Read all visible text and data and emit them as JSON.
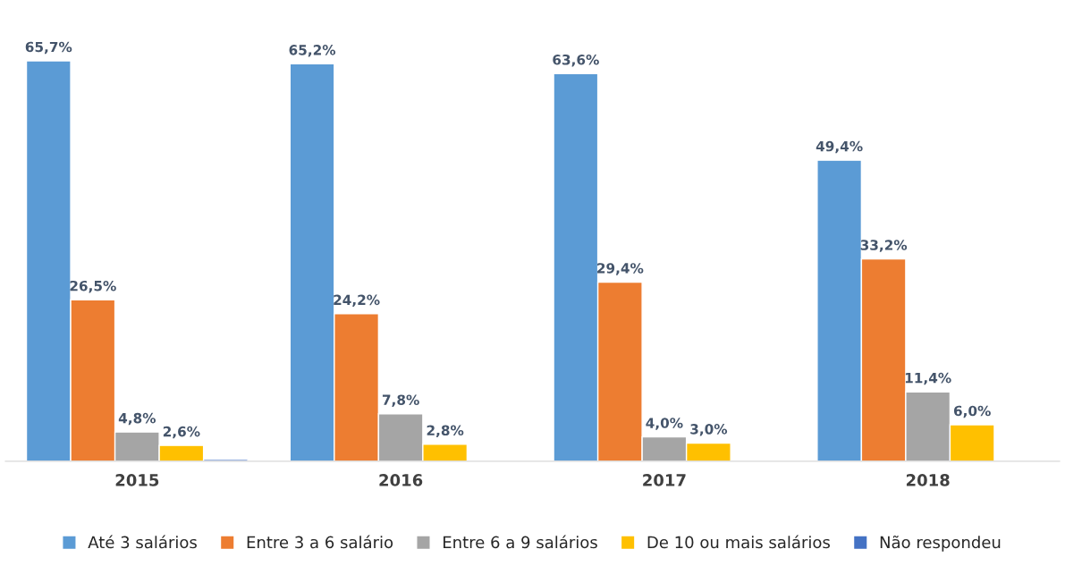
{
  "chart_data": {
    "type": "bar",
    "categories": [
      "2015",
      "2016",
      "2017",
      "2018"
    ],
    "series": [
      {
        "name": "Até 3 salários",
        "color": "#5b9bd5",
        "values": [
          65.7,
          65.2,
          63.6,
          49.4
        ],
        "value_labels": [
          "65,7%",
          "65,2%",
          "63,6%",
          "49,4%"
        ]
      },
      {
        "name": "Entre 3 a 6 salário",
        "color": "#ed7d31",
        "values": [
          26.5,
          24.2,
          29.4,
          33.2
        ],
        "value_labels": [
          "26,5%",
          "24,2%",
          "29,4%",
          "33,2%"
        ]
      },
      {
        "name": "Entre 6 a 9 salários",
        "color": "#a5a5a5",
        "values": [
          4.8,
          7.8,
          4.0,
          11.4
        ],
        "value_labels": [
          "4,8%",
          "7,8%",
          "4,0%",
          "11,4%"
        ]
      },
      {
        "name": "De 10 ou mais salários",
        "color": "#ffc000",
        "values": [
          2.6,
          2.8,
          3.0,
          6.0
        ],
        "value_labels": [
          "2,6%",
          "2,8%",
          "3,0%",
          "6,0%"
        ]
      },
      {
        "name": "Não respondeu",
        "color": "#4472c4",
        "values": [
          0.3,
          null,
          null,
          null
        ],
        "value_labels": [
          null,
          null,
          null,
          null
        ]
      }
    ],
    "legend": "bottom",
    "grid": false
  }
}
